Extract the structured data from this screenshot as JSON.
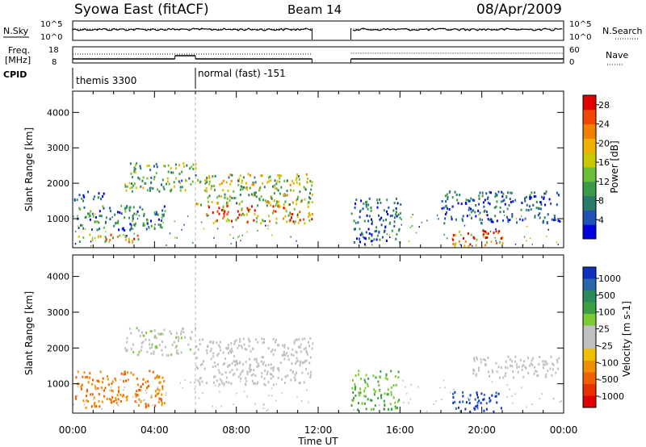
{
  "header": {
    "title": "Syowa East (fitACF)",
    "beam": "Beam 14",
    "date": "08/Apr/2009"
  },
  "top_panels": {
    "nsky_label": "N.Sky",
    "nsky_ticks": [
      "10^5",
      "10^0"
    ],
    "nsearch_ticks": [
      "10^5",
      "10^0"
    ],
    "nsearch_label": "N.Search",
    "freq_label": "Freq.",
    "freq_unit": "[MHz]",
    "freq_ticks": [
      "18",
      "8"
    ],
    "nave_ticks": [
      "60",
      "0"
    ],
    "nave_label": "Nave",
    "cpid_label": "CPID",
    "cpid_segments": [
      {
        "label": "themis 3300",
        "start_hour": 0,
        "end_hour": 6
      },
      {
        "label": "normal (fast) -151",
        "start_hour": 6,
        "end_hour": 24
      }
    ],
    "data_gap_hours": [
      11.7,
      13.6
    ],
    "freq_steps": [
      {
        "start_hour": 0,
        "end_hour": 5,
        "value": 10.5
      },
      {
        "start_hour": 5,
        "end_hour": 6,
        "value": 12.5
      },
      {
        "start_hour": 6,
        "end_hour": 24,
        "value": 10.5
      }
    ]
  },
  "chart_data": [
    {
      "type": "heatmap",
      "panel": "power",
      "ylabel": "Slant Range [km]",
      "xlabel": "Time UT",
      "xlim": [
        0,
        24
      ],
      "ylim": [
        180,
        4600
      ],
      "x_tick_labels": [
        "00:00",
        "04:00",
        "08:00",
        "12:00",
        "16:00",
        "20:00",
        "00:00"
      ],
      "y_tick_labels": [
        "1000",
        "2000",
        "3000",
        "4000"
      ],
      "colorbar": {
        "label": "Power [dB]",
        "ticks": [
          "28",
          "24",
          "20",
          "16",
          "12",
          "8",
          "4"
        ],
        "range": [
          0,
          30
        ],
        "colors": [
          "#0000dd",
          "#2050b8",
          "#2a7a6a",
          "#3a9a4a",
          "#6abf3a",
          "#c8c800",
          "#f0b000",
          "#f08000",
          "#f04800",
          "#e00000"
        ]
      },
      "regions": [
        {
          "t0": 0.0,
          "t1": 1.5,
          "r0": 1500,
          "r1": 1800,
          "level": 6
        },
        {
          "t0": 0.1,
          "t1": 3.2,
          "r0": 350,
          "r1": 600,
          "level": 18
        },
        {
          "t0": 0.2,
          "t1": 4.5,
          "r0": 700,
          "r1": 1400,
          "level": 8
        },
        {
          "t0": 2.5,
          "t1": 6.0,
          "r0": 1800,
          "r1": 2600,
          "level": 12
        },
        {
          "t0": 6.0,
          "t1": 11.7,
          "r0": 1400,
          "r1": 2300,
          "level": 14
        },
        {
          "t0": 6.5,
          "t1": 11.7,
          "r0": 900,
          "r1": 1400,
          "level": 22
        },
        {
          "t0": 13.6,
          "t1": 16.0,
          "r0": 300,
          "r1": 1600,
          "level": 6
        },
        {
          "t0": 18.5,
          "t1": 21.0,
          "r0": 250,
          "r1": 700,
          "level": 26
        },
        {
          "t0": 18.0,
          "t1": 23.8,
          "r0": 900,
          "r1": 1800,
          "level": 6
        }
      ]
    },
    {
      "type": "heatmap",
      "panel": "velocity",
      "ylabel": "Slant Range [km]",
      "xlabel": "Time UT",
      "xlim": [
        0,
        24
      ],
      "ylim": [
        180,
        4600
      ],
      "x_tick_labels": [
        "00:00",
        "04:00",
        "08:00",
        "12:00",
        "16:00",
        "20:00",
        "00:00"
      ],
      "y_tick_labels": [
        "1000",
        "2000",
        "3000",
        "4000"
      ],
      "colorbar": {
        "label": "Velocity [m s-1]",
        "ticks": [
          "1000",
          "500",
          "100",
          "25",
          "-25",
          "-100",
          "-500",
          "-1000"
        ],
        "colors": [
          "#1030c0",
          "#2868a8",
          "#2a8a5a",
          "#3aa040",
          "#7acc30",
          "#c0c0c0",
          "#c0c0c0",
          "#f0c000",
          "#f09000",
          "#f06000",
          "#e83000",
          "#e00000"
        ]
      },
      "regions": [
        {
          "t0": 0.1,
          "t1": 4.5,
          "r0": 350,
          "r1": 1400,
          "level": -200
        },
        {
          "t0": 2.5,
          "t1": 6.0,
          "r0": 1800,
          "r1": 2600,
          "level": 20
        },
        {
          "t0": 6.0,
          "t1": 11.7,
          "r0": 1000,
          "r1": 2300,
          "level": 0
        },
        {
          "t0": 13.6,
          "t1": 16.0,
          "r0": 300,
          "r1": 1400,
          "level": 50
        },
        {
          "t0": 18.5,
          "t1": 21.0,
          "r0": 250,
          "r1": 800,
          "level": 600
        },
        {
          "t0": 19.5,
          "t1": 23.8,
          "r0": 1200,
          "r1": 1800,
          "level": 0
        }
      ]
    }
  ]
}
